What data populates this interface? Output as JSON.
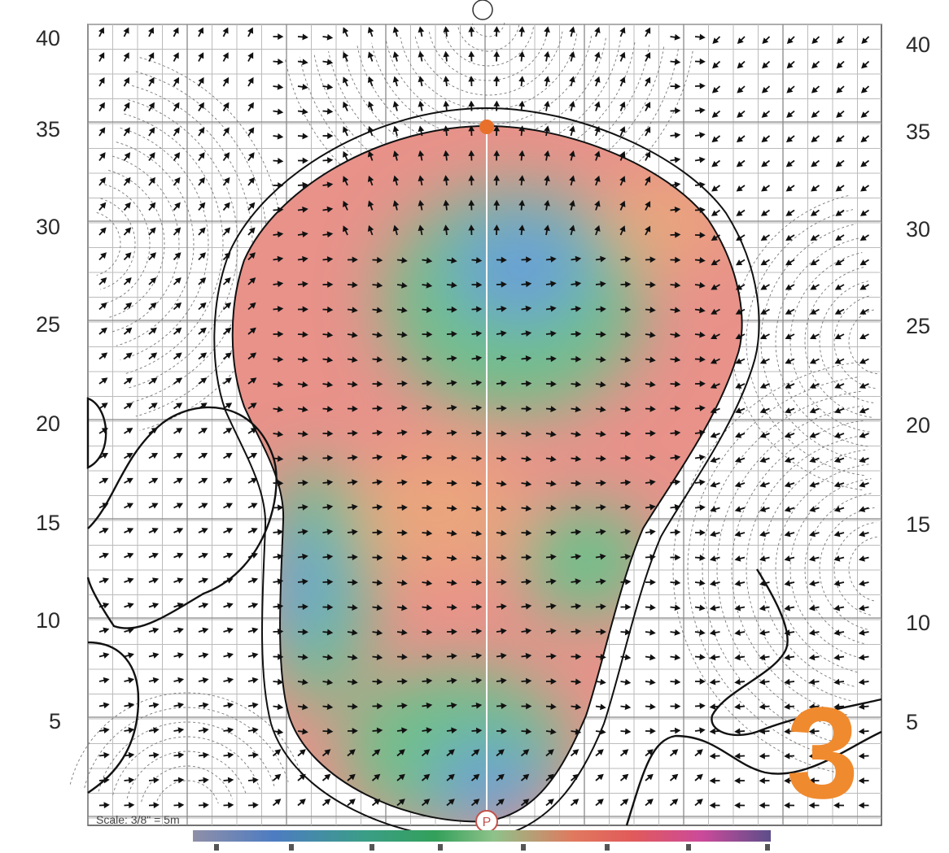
{
  "green_map": {
    "hole_number": "3",
    "scale_text": "Scale: 3/8\" = 5m",
    "pin_marker": "P",
    "y_axis_labels": [
      "40",
      "35",
      "30",
      "25",
      "20",
      "15",
      "10",
      "5"
    ],
    "colors": {
      "high_red": "#e8928a",
      "mid_orange": "#eaa57d",
      "mid_green": "#6fbf8a",
      "low_blue": "#6aa0d6",
      "hole_number": "#f08a2e",
      "front_marker": "#e8702a"
    }
  }
}
